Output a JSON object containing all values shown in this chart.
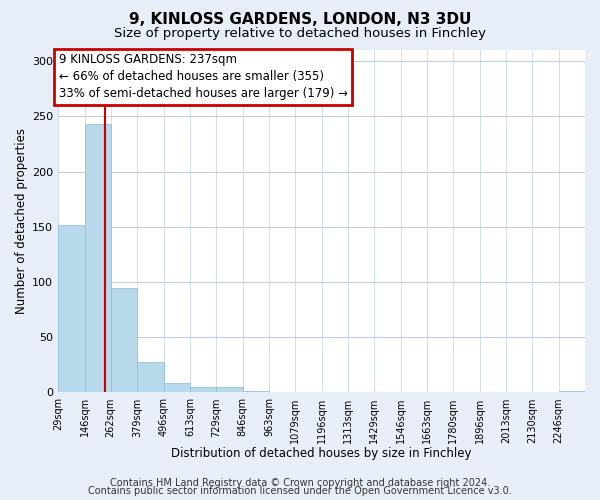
{
  "title": "9, KINLOSS GARDENS, LONDON, N3 3DU",
  "subtitle": "Size of property relative to detached houses in Finchley",
  "xlabel": "Distribution of detached houses by size in Finchley",
  "ylabel": "Number of detached properties",
  "bin_edges": [
    29,
    146,
    262,
    379,
    496,
    613,
    729,
    846,
    963,
    1079,
    1196,
    1313,
    1429,
    1546,
    1663,
    1780,
    1896,
    2013,
    2130,
    2246,
    2363
  ],
  "bar_heights": [
    152,
    243,
    95,
    28,
    9,
    5,
    5,
    1,
    0,
    0,
    0,
    0,
    0,
    0,
    0,
    0,
    0,
    0,
    0,
    1
  ],
  "bar_color": "#b8d8ec",
  "bar_edgecolor": "#88bcd8",
  "property_size": 237,
  "vline_color": "#cc0000",
  "ylim": [
    0,
    310
  ],
  "yticks": [
    0,
    50,
    100,
    150,
    200,
    250,
    300
  ],
  "annotation_line1": "9 KINLOSS GARDENS: 237sqm",
  "annotation_line2": "← 66% of detached houses are smaller (355)",
  "annotation_line3": "33% of semi-detached houses are larger (179) →",
  "annotation_box_color": "#cc0000",
  "footer_line1": "Contains HM Land Registry data © Crown copyright and database right 2024.",
  "footer_line2": "Contains public sector information licensed under the Open Government Licence v3.0.",
  "fig_background_color": "#e8eef8",
  "plot_background_color": "#ffffff",
  "grid_color": "#c0d0e0",
  "title_fontsize": 11,
  "subtitle_fontsize": 9.5,
  "tick_label_fontsize": 7,
  "axis_label_fontsize": 8.5,
  "footer_fontsize": 7,
  "annotation_fontsize": 8.5
}
